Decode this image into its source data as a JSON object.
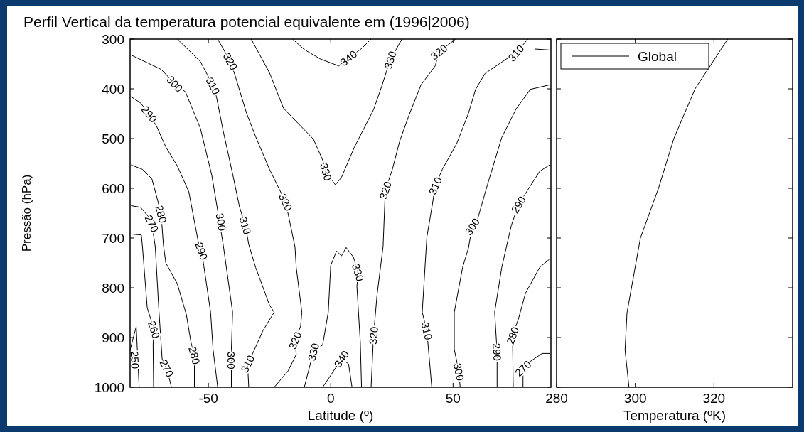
{
  "chart_data": [
    {
      "type": "line",
      "title": "Perfil Vertical da temperatura potencial equivalente em (1996|2006)",
      "xlabel": "Latitude (º)",
      "ylabel": "Pressão (hPa)",
      "xlim": [
        -82,
        90
      ],
      "xticks": [
        -50,
        0,
        50
      ],
      "ylim": [
        1000,
        300
      ],
      "yticks": [
        300,
        400,
        500,
        600,
        700,
        800,
        900,
        1000
      ],
      "legend": false,
      "series": [
        {
          "color": "#000000",
          "x": [
            -81.6,
            -69.3,
            -63.7,
            -59.4,
            -53.3,
            -48.6,
            -46.2,
            -43.9,
            -40.1,
            -40.6,
            -40.6
          ],
          "values": [
            332,
            361,
            390,
            406,
            479,
            574,
            645,
            715,
            849,
            924,
            1000
          ]
        },
        {
          "color": "#000000",
          "x": [
            -62.7,
            -53.3,
            -50.5,
            -48.1,
            -46.7,
            -43.9,
            -40.1,
            -37.3,
            -34.9,
            -33.5,
            -30.7,
            -25.0,
            -23.1,
            -27.8,
            -31.6,
            -34.0,
            -33.5
          ],
          "values": [
            300,
            345,
            371,
            394,
            416,
            486,
            571,
            637,
            675,
            713,
            759,
            835,
            849,
            887,
            929,
            953,
            1000
          ]
        },
        {
          "color": "#000000",
          "x": [
            -46.2,
            -41.0,
            -39.1,
            -34.4,
            -30.7,
            -25.0,
            -21.2,
            -18.4,
            -14.6,
            -14.1,
            -11.8,
            -12.3,
            -14.6,
            -14.1,
            -17.4,
            -23.1
          ],
          "values": [
            300,
            345,
            373,
            449,
            496,
            562,
            600,
            628,
            718,
            759,
            849,
            877,
            906,
            934,
            967,
            1000
          ]
        },
        {
          "color": "#000000",
          "x": [
            -32.5,
            -25.0,
            -19.3,
            -15.6,
            -7.1,
            -3.3,
            -1.9,
            1.9,
            4.4,
            9.7,
            17.5,
            20.9,
            24.3,
            29.1
          ],
          "values": [
            300,
            368,
            439,
            458,
            501,
            543,
            567,
            593,
            578,
            517,
            442,
            394,
            342,
            300
          ]
        },
        {
          "color": "#000000",
          "x": [
            -10.8,
            -7.1,
            -3.3,
            -1.0,
            0.0,
            2.4,
            4.4,
            6.3,
            9.2,
            9.7,
            11.2,
            10.7,
            12.1,
            12.6
          ],
          "values": [
            1000,
            929,
            915,
            849,
            755,
            726,
            736,
            719,
            738,
            745,
            769,
            797,
            910,
            1000
          ]
        },
        {
          "color": "#000000",
          "x": [
            -15.6,
            -10.8,
            -4.2,
            3.3,
            7.3,
            12.6,
            16.5
          ],
          "values": [
            300,
            321,
            340,
            354,
            338,
            319,
            300
          ]
        },
        {
          "color": "#000000",
          "x": [
            -3.3,
            0.0,
            4.4,
            7.3,
            8.7
          ],
          "values": [
            1000,
            976,
            943,
            953,
            1000
          ]
        },
        {
          "color": "#000000",
          "x": [
            51.0,
            44.2,
            42.7,
            36.9,
            32.0,
            28.2,
            25.2,
            22.3,
            21.4,
            18.9,
            17.5,
            16.5
          ],
          "values": [
            300,
            326,
            354,
            392,
            453,
            505,
            562,
            604,
            717,
            816,
            896,
            1000
          ]
        },
        {
          "color": "#000000",
          "x": [
            80.6,
            75.7,
            71.8,
            63.1,
            59.2,
            56.3,
            51.5,
            45.6,
            42.7,
            41.7,
            39.3,
            37.4,
            39.3,
            39.8,
            41.3
          ],
          "values": [
            300,
            328,
            340,
            369,
            401,
            449,
            510,
            562,
            595,
            628,
            698,
            849,
            887,
            915,
            1000
          ]
        },
        {
          "color": "#000000",
          "x": [
            89.5,
            83.5
          ],
          "values": [
            322,
            320
          ]
        },
        {
          "color": "#000000",
          "x": [
            89.5,
            81.6,
            75.7,
            69.9,
            64.1,
            60.2,
            57.8,
            56.3,
            53.9,
            50.5,
            50.5,
            52.4,
            52.9
          ],
          "values": [
            392,
            401,
            441,
            498,
            592,
            659,
            677,
            720,
            759,
            849,
            924,
            969,
            1000
          ]
        },
        {
          "color": "#000000",
          "x": [
            89.8,
            85.4,
            81.6,
            76.7,
            73.8,
            71.8,
            69.9,
            67.0,
            68.0,
            68.0
          ],
          "values": [
            552,
            566,
            595,
            633,
            675,
            718,
            759,
            849,
            929,
            1000
          ]
        },
        {
          "color": "#000000",
          "x": [
            89.3,
            85.4,
            79.6,
            76.7,
            74.3,
            74.6
          ],
          "values": [
            743,
            759,
            811,
            863,
            896,
            1000
          ]
        },
        {
          "color": "#000000",
          "x": [
            89.5,
            86.4,
            81.6,
            78.6,
            78.6
          ],
          "values": [
            932,
            932,
            948,
            962,
            1000
          ]
        },
        {
          "color": "#000000",
          "x": [
            -81.6,
            -77.8,
            -74.1,
            -71.2,
            -67.4,
            -62.7,
            -58.0,
            -54.2,
            -52.8,
            -51.9,
            -49.1,
            -48.1,
            -46.2
          ],
          "values": [
            416,
            428,
            451,
            475,
            517,
            555,
            607,
            706,
            726,
            755,
            849,
            924,
            1000
          ]
        },
        {
          "color": "#000000",
          "x": [
            -81.6,
            -76.9,
            -73.1,
            -70.8,
            -69.3,
            -68.4,
            -67.4,
            -62.7,
            -59.0,
            -57.1,
            -55.7,
            -55.7
          ],
          "values": [
            553,
            562,
            581,
            623,
            652,
            713,
            750,
            792,
            854,
            910,
            936,
            1000
          ]
        },
        {
          "color": "#000000",
          "x": [
            -81.6,
            -77.8,
            -74.5,
            -73.1,
            -71.7,
            -70.3,
            -68.9,
            -67.0,
            -65.1
          ],
          "values": [
            635,
            638,
            657,
            671,
            718,
            840,
            943,
            962,
            1000
          ]
        },
        {
          "color": "#000000",
          "x": [
            -81.6,
            -77.4,
            -76.9,
            -75.0,
            -72.2,
            -72.6,
            -72.4
          ],
          "values": [
            692,
            694,
            720,
            840,
            884,
            915,
            1000
          ]
        },
        {
          "color": "#000000",
          "x": [
            -82,
            -79.5,
            -78.3
          ],
          "values": [
            925,
            878,
            1000
          ]
        }
      ],
      "annotations": [
        {
          "text": "300",
          "x": -63.7,
          "y": 390
        },
        {
          "text": "300",
          "x": -44.8,
          "y": 668
        },
        {
          "text": "300",
          "x": -40.6,
          "y": 946
        },
        {
          "text": "310",
          "x": -48.1,
          "y": 394
        },
        {
          "text": "310",
          "x": -34.9,
          "y": 675
        },
        {
          "text": "310",
          "x": -34.0,
          "y": 953
        },
        {
          "text": "320",
          "x": -41.0,
          "y": 345
        },
        {
          "text": "320",
          "x": -18.4,
          "y": 628
        },
        {
          "text": "320",
          "x": -14.6,
          "y": 906
        },
        {
          "text": "330",
          "x": -1.9,
          "y": 567
        },
        {
          "text": "330",
          "x": 24.3,
          "y": 342
        },
        {
          "text": "330",
          "x": 11.2,
          "y": 769
        },
        {
          "text": "330",
          "x": -7.1,
          "y": 929
        },
        {
          "text": "340",
          "x": 7.3,
          "y": 338
        },
        {
          "text": "340",
          "x": 4.4,
          "y": 943
        },
        {
          "text": "320",
          "x": 44.2,
          "y": 326
        },
        {
          "text": "320",
          "x": 22.3,
          "y": 604
        },
        {
          "text": "320",
          "x": 17.5,
          "y": 896
        },
        {
          "text": "310",
          "x": 75.7,
          "y": 328
        },
        {
          "text": "310",
          "x": 42.7,
          "y": 595
        },
        {
          "text": "310",
          "x": 39.3,
          "y": 887
        },
        {
          "text": "300",
          "x": 57.8,
          "y": 677
        },
        {
          "text": "300",
          "x": 52.4,
          "y": 969
        },
        {
          "text": "290",
          "x": 76.7,
          "y": 633
        },
        {
          "text": "290",
          "x": 68.0,
          "y": 929
        },
        {
          "text": "280",
          "x": 74.3,
          "y": 896
        },
        {
          "text": "270",
          "x": 78.6,
          "y": 962
        },
        {
          "text": "290",
          "x": -74.1,
          "y": 451
        },
        {
          "text": "290",
          "x": -52.8,
          "y": 726
        },
        {
          "text": "280",
          "x": -69.3,
          "y": 652
        },
        {
          "text": "280",
          "x": -55.7,
          "y": 936
        },
        {
          "text": "270",
          "x": -73.1,
          "y": 671
        },
        {
          "text": "270",
          "x": -67.0,
          "y": 962
        },
        {
          "text": "260",
          "x": -72.2,
          "y": 884
        },
        {
          "text": "250",
          "x": -80.0,
          "y": 945
        }
      ]
    },
    {
      "type": "line",
      "xlabel": "Temperatura (ºK)",
      "xlim": [
        280,
        340
      ],
      "xticks": [
        280,
        300,
        320
      ],
      "ylim": [
        1000,
        300
      ],
      "yticks": [
        300,
        400,
        500,
        600,
        700,
        800,
        900,
        1000
      ],
      "tick_labels": "x",
      "legend": "top left",
      "series": [
        {
          "name": "Global",
          "color": "#000000",
          "x": [
            298.4,
            297.4,
            297.9,
            301.3,
            305.9,
            309.8,
            315.2,
            323.5
          ],
          "values": [
            1000,
            925,
            850,
            700,
            600,
            500,
            400,
            300
          ]
        }
      ]
    }
  ]
}
